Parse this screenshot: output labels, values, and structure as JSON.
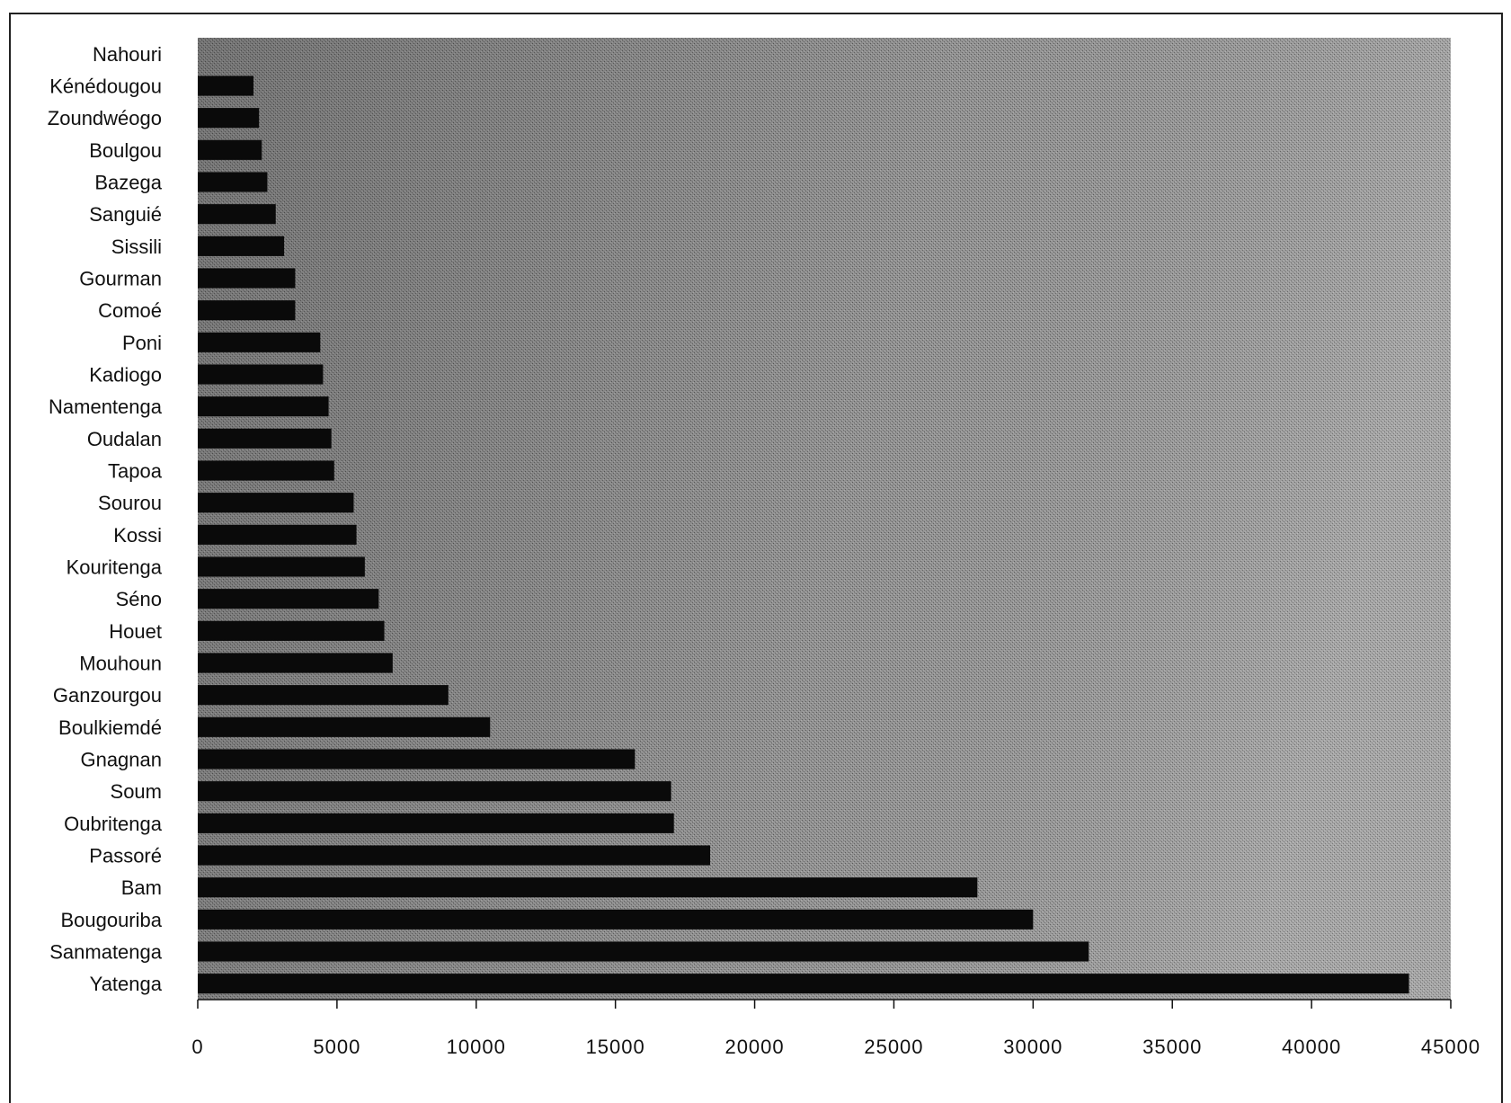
{
  "chart_data": {
    "type": "bar",
    "orientation": "horizontal",
    "categories": [
      "Nahouri",
      "Kénédougou",
      "Zoundwéogo",
      "Boulgou",
      "Bazega",
      "Sanguié",
      "Sissili",
      "Gourman",
      "Comoé",
      "Poni",
      "Kadiogo",
      "Namentenga",
      "Oudalan",
      "Tapoa",
      "Sourou",
      "Kossi",
      "Kouritenga",
      "Séno",
      "Houet",
      "Mouhoun",
      "Ganzourgou",
      "Boulkiemdé",
      "Gnagnan",
      "Soum",
      "Oubritenga",
      "Passoré",
      "Bam",
      "Bougouriba",
      "Sanmatenga",
      "Yatenga"
    ],
    "values": [
      0,
      2000,
      2200,
      2300,
      2500,
      2800,
      3100,
      3500,
      3500,
      4400,
      4500,
      4700,
      4800,
      4900,
      5600,
      5700,
      6000,
      6500,
      6700,
      7000,
      9000,
      10500,
      15700,
      17000,
      17100,
      18400,
      28000,
      30000,
      32000,
      43500
    ],
    "xlim": [
      0,
      45000
    ],
    "xticks": [
      "0",
      "5000",
      "10000",
      "15000",
      "20000",
      "25000",
      "30000",
      "35000",
      "40000",
      "45000"
    ],
    "colors": {
      "bar": "#0a0a0a",
      "plot_background": "#8c8c8c"
    },
    "grid": false,
    "legend": "none"
  }
}
